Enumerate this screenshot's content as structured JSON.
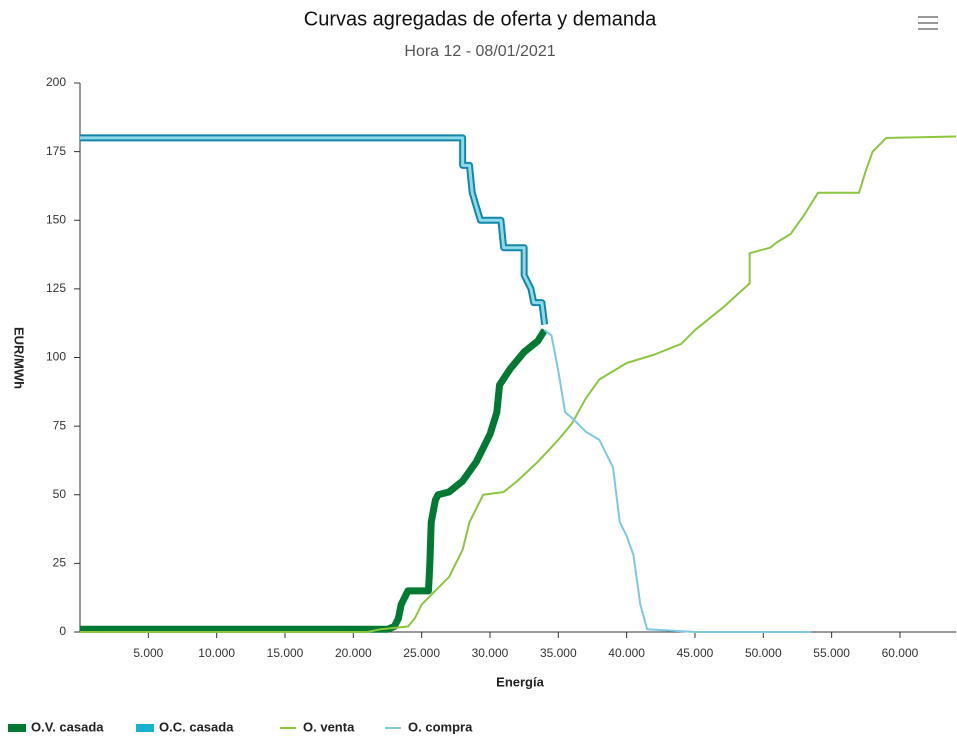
{
  "chart_data": {
    "type": "line",
    "title": "Curvas agregadas de oferta y demanda",
    "subtitle": "Hora 12 - 08/01/2021",
    "x_label": "Energía",
    "y_label": "EUR/MWh",
    "xlim": [
      0,
      64100
    ],
    "ylim": [
      0,
      200
    ],
    "xticks": [
      {
        "value": 5000,
        "label": "5.000"
      },
      {
        "value": 10000,
        "label": "10.000"
      },
      {
        "value": 15000,
        "label": "15.000"
      },
      {
        "value": 20000,
        "label": "20.000"
      },
      {
        "value": 25000,
        "label": "25.000"
      },
      {
        "value": 30000,
        "label": "30.000"
      },
      {
        "value": 35000,
        "label": "35.000"
      },
      {
        "value": 40000,
        "label": "40.000"
      },
      {
        "value": 45000,
        "label": "45.000"
      },
      {
        "value": 50000,
        "label": "50.000"
      },
      {
        "value": 55000,
        "label": "55.000"
      },
      {
        "value": 60000,
        "label": "60.000"
      }
    ],
    "yticks": [
      0,
      25,
      50,
      75,
      100,
      125,
      150,
      175,
      200
    ],
    "series": [
      {
        "name": "O.V. casada",
        "color": "#007a33",
        "x": [
          0,
          22500,
          23000,
          23300,
          23500,
          24000,
          25500,
          25600,
          25700,
          26000,
          26200,
          27000,
          28000,
          29000,
          30000,
          30500,
          30700,
          31500,
          32500,
          33500,
          34000
        ],
        "values": [
          1,
          1,
          2,
          5,
          10,
          15,
          15,
          25,
          40,
          48,
          50,
          51,
          55,
          62,
          72,
          80,
          90,
          96,
          102,
          106,
          110
        ]
      },
      {
        "name": "O.C. casada",
        "color": "#1ab0cf",
        "x": [
          0,
          28000,
          28000,
          28500,
          28700,
          29000,
          29300,
          30800,
          31000,
          32500,
          32500,
          33000,
          33200,
          33800,
          34000
        ],
        "values": [
          180,
          180,
          170,
          170,
          160,
          155,
          150,
          150,
          140,
          140,
          130,
          125,
          120,
          120,
          112
        ]
      },
      {
        "name": "O. venta",
        "color": "#8cc63f",
        "x": [
          0,
          21000,
          22000,
          24000,
          24500,
          25000,
          26000,
          27000,
          28000,
          28500,
          29500,
          31000,
          32000,
          33500,
          35000,
          36000,
          37000,
          38000,
          40000,
          42000,
          44000,
          45000,
          47000,
          49000,
          49000,
          50500,
          51000,
          52000,
          53000,
          54000,
          57000,
          57500,
          58000,
          59000,
          64100
        ],
        "values": [
          0,
          0,
          1,
          2,
          5,
          10,
          15,
          20,
          30,
          40,
          50,
          51,
          55,
          62,
          70,
          76,
          85,
          92,
          98,
          101,
          105,
          110,
          118,
          127,
          138,
          140,
          142,
          145,
          152,
          160,
          160,
          168,
          175,
          180,
          180.5
        ]
      },
      {
        "name": "O. compra",
        "color": "#7ec8e3",
        "x": [
          34000,
          34500,
          35000,
          35500,
          36000,
          37000,
          38000,
          39000,
          39500,
          40000,
          40500,
          41000,
          41500,
          45000,
          53500
        ],
        "values": [
          110,
          108,
          95,
          80,
          78,
          73,
          70,
          60,
          40,
          35,
          28,
          10,
          1,
          0,
          0
        ]
      }
    ]
  }
}
